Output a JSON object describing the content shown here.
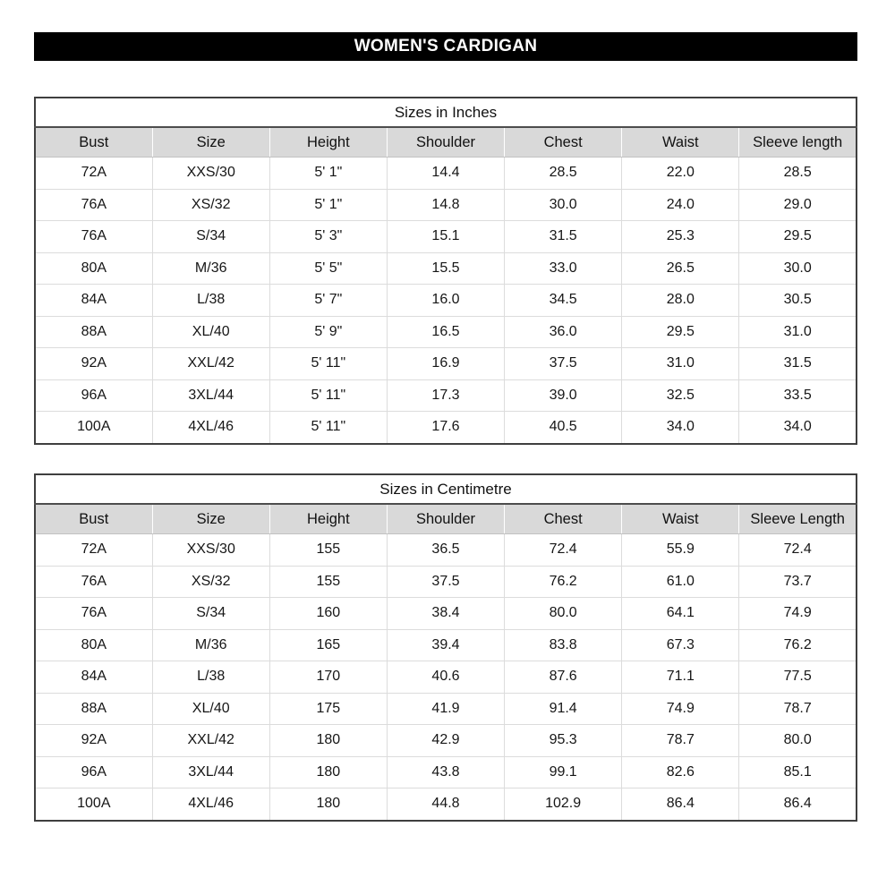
{
  "banner": {
    "title": "WOMEN'S CARDIGAN"
  },
  "colors": {
    "banner_bg": "#000000",
    "banner_fg": "#ffffff",
    "header_fill": "#d9d9d9",
    "outer_border": "#3f3f3f",
    "gridline": "#dcdcdc"
  },
  "tables": [
    {
      "title": "Sizes in Inches",
      "columns": [
        "Bust",
        "Size",
        "Height",
        "Shoulder",
        "Chest",
        "Waist",
        "Sleeve length"
      ],
      "rows": [
        [
          "72A",
          "XXS/30",
          "5' 1\"",
          "14.4",
          "28.5",
          "22.0",
          "28.5"
        ],
        [
          "76A",
          "XS/32",
          "5' 1\"",
          "14.8",
          "30.0",
          "24.0",
          "29.0"
        ],
        [
          "76A",
          "S/34",
          "5' 3\"",
          "15.1",
          "31.5",
          "25.3",
          "29.5"
        ],
        [
          "80A",
          "M/36",
          "5' 5\"",
          "15.5",
          "33.0",
          "26.5",
          "30.0"
        ],
        [
          "84A",
          "L/38",
          "5' 7\"",
          "16.0",
          "34.5",
          "28.0",
          "30.5"
        ],
        [
          "88A",
          "XL/40",
          "5' 9\"",
          "16.5",
          "36.0",
          "29.5",
          "31.0"
        ],
        [
          "92A",
          "XXL/42",
          "5' 11\"",
          "16.9",
          "37.5",
          "31.0",
          "31.5"
        ],
        [
          "96A",
          "3XL/44",
          "5' 11\"",
          "17.3",
          "39.0",
          "32.5",
          "33.5"
        ],
        [
          "100A",
          "4XL/46",
          "5' 11\"",
          "17.6",
          "40.5",
          "34.0",
          "34.0"
        ]
      ]
    },
    {
      "title": "Sizes in Centimetre",
      "columns": [
        "Bust",
        "Size",
        "Height",
        "Shoulder",
        "Chest",
        "Waist",
        "Sleeve Length"
      ],
      "rows": [
        [
          "72A",
          "XXS/30",
          "155",
          "36.5",
          "72.4",
          "55.9",
          "72.4"
        ],
        [
          "76A",
          "XS/32",
          "155",
          "37.5",
          "76.2",
          "61.0",
          "73.7"
        ],
        [
          "76A",
          "S/34",
          "160",
          "38.4",
          "80.0",
          "64.1",
          "74.9"
        ],
        [
          "80A",
          "M/36",
          "165",
          "39.4",
          "83.8",
          "67.3",
          "76.2"
        ],
        [
          "84A",
          "L/38",
          "170",
          "40.6",
          "87.6",
          "71.1",
          "77.5"
        ],
        [
          "88A",
          "XL/40",
          "175",
          "41.9",
          "91.4",
          "74.9",
          "78.7"
        ],
        [
          "92A",
          "XXL/42",
          "180",
          "42.9",
          "95.3",
          "78.7",
          "80.0"
        ],
        [
          "96A",
          "3XL/44",
          "180",
          "43.8",
          "99.1",
          "82.6",
          "85.1"
        ],
        [
          "100A",
          "4XL/46",
          "180",
          "44.8",
          "102.9",
          "86.4",
          "86.4"
        ]
      ]
    }
  ]
}
